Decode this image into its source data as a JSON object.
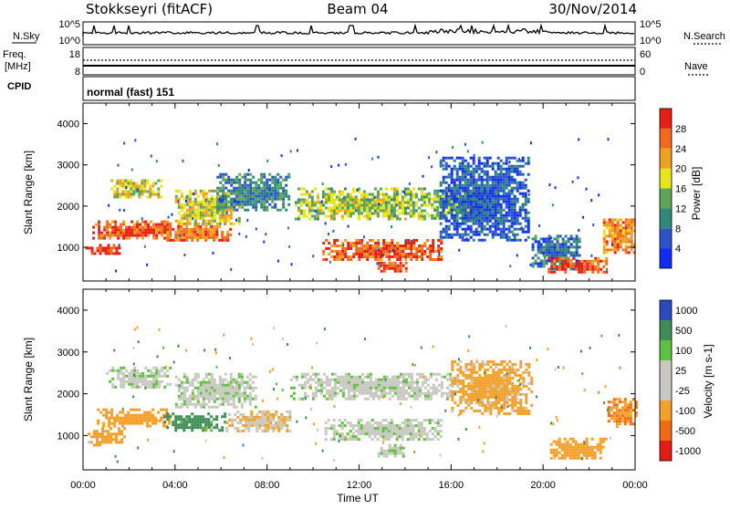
{
  "header": {
    "title": "Stokkseyri (fitACF)",
    "beam": "Beam 04",
    "date": "30/Nov/2014"
  },
  "strips": {
    "nsky": {
      "label": "N.Sky",
      "ticks_left": [
        "10^5",
        "10^0"
      ],
      "ticks_right": [
        "10^5",
        "10^0"
      ],
      "right_label": "N.Search"
    },
    "freq": {
      "label_line1": "Freq.",
      "label_line2": "[MHz]",
      "ticks_left": [
        "18",
        "8"
      ],
      "ticks_right": [
        "60",
        "0"
      ],
      "right_label": "Nave"
    },
    "cpid": {
      "label": "CPID",
      "value": "normal (fast) 151"
    }
  },
  "colors": {
    "power": [
      "#0f2df0",
      "#2b54c8",
      "#2e8a78",
      "#5ca65a",
      "#e6e619",
      "#f0a020",
      "#f06a1e",
      "#e81e14"
    ],
    "velocity": [
      "#e51c14",
      "#f06a14",
      "#f4a028",
      "#c8c8c0",
      "#c8c8c0",
      "#5cc13c",
      "#3d8d54",
      "#2b4ac2"
    ]
  },
  "chart_data": [
    {
      "type": "heatmap",
      "panel": "power",
      "xlabel": "",
      "ylabel": "Slant Range [km]",
      "yticks": [
        1000,
        2000,
        3000,
        4000
      ],
      "ylim": [
        180,
        4500
      ],
      "xlim": [
        0,
        24
      ],
      "colorbar": {
        "label": "Power [dB]",
        "ticks": [
          "4",
          "8",
          "12",
          "16",
          "20",
          "24",
          "28"
        ],
        "range": [
          0,
          32
        ]
      },
      "regions": [
        {
          "t": [
            0.1,
            1.6
          ],
          "r": [
            820,
            1080
          ],
          "v": 29
        },
        {
          "t": [
            0.4,
            3.8
          ],
          "r": [
            1200,
            1650
          ],
          "v": 27
        },
        {
          "t": [
            1.2,
            3.4
          ],
          "r": [
            2200,
            2650
          ],
          "v": 18
        },
        {
          "t": [
            3.5,
            6.4
          ],
          "r": [
            1150,
            1600
          ],
          "v": 25
        },
        {
          "t": [
            4.0,
            6.8
          ],
          "r": [
            1550,
            2400
          ],
          "v": 19
        },
        {
          "t": [
            5.8,
            9.0
          ],
          "r": [
            1900,
            2800
          ],
          "v": 10
        },
        {
          "t": [
            9.2,
            15.0
          ],
          "r": [
            1700,
            2450
          ],
          "v": 16
        },
        {
          "t": [
            10.4,
            15.6
          ],
          "r": [
            700,
            1200
          ],
          "v": 27
        },
        {
          "t": [
            12.8,
            14.0
          ],
          "r": [
            420,
            650
          ],
          "v": 28
        },
        {
          "t": [
            15.0,
            17.5
          ],
          "r": [
            1700,
            2400
          ],
          "v": 14
        },
        {
          "t": [
            15.5,
            19.4
          ],
          "r": [
            1200,
            3200
          ],
          "v": 6
        },
        {
          "t": [
            19.5,
            21.6
          ],
          "r": [
            500,
            1300
          ],
          "v": 8
        },
        {
          "t": [
            20.2,
            22.8
          ],
          "r": [
            420,
            760
          ],
          "v": 27
        },
        {
          "t": [
            22.6,
            24.0
          ],
          "r": [
            900,
            1700
          ],
          "v": 24
        }
      ]
    },
    {
      "type": "heatmap",
      "panel": "velocity",
      "xlabel": "Time UT",
      "ylabel": "Slant Range [km]",
      "xticks": [
        "00:00",
        "04:00",
        "08:00",
        "12:00",
        "16:00",
        "20:00",
        "00:00"
      ],
      "yticks": [
        1000,
        2000,
        3000,
        4000
      ],
      "ylim": [
        180,
        4500
      ],
      "xlim": [
        0,
        24
      ],
      "colorbar": {
        "label": "Velocity [m s-1]",
        "ticks": [
          "1000",
          "500",
          "100",
          "25",
          "-25",
          "-100",
          "-500",
          "-1000"
        ],
        "levels": [
          -1000,
          -500,
          -100,
          -25,
          25,
          100,
          500,
          1000
        ]
      },
      "regions": [
        {
          "t": [
            0.2,
            1.8
          ],
          "r": [
            800,
            1200
          ],
          "v": -180
        },
        {
          "t": [
            0.6,
            3.8
          ],
          "r": [
            1250,
            1650
          ],
          "v": -220
        },
        {
          "t": [
            1.0,
            3.8
          ],
          "r": [
            2150,
            2650
          ],
          "v": 0
        },
        {
          "t": [
            3.5,
            6.2
          ],
          "r": [
            1150,
            1550
          ],
          "v": 160
        },
        {
          "t": [
            4.0,
            7.5
          ],
          "r": [
            1700,
            2500
          ],
          "v": 0
        },
        {
          "t": [
            6.2,
            9.0
          ],
          "r": [
            1100,
            1600
          ],
          "v": -90
        },
        {
          "t": [
            9.0,
            16.0
          ],
          "r": [
            1900,
            2500
          ],
          "v": 0
        },
        {
          "t": [
            10.5,
            15.5
          ],
          "r": [
            900,
            1400
          ],
          "v": 0
        },
        {
          "t": [
            12.8,
            14.0
          ],
          "r": [
            500,
            800
          ],
          "v": 0
        },
        {
          "t": [
            16.0,
            19.5
          ],
          "r": [
            1500,
            2800
          ],
          "v": -150
        },
        {
          "t": [
            20.3,
            22.7
          ],
          "r": [
            450,
            950
          ],
          "v": -250
        },
        {
          "t": [
            22.8,
            24.0
          ],
          "r": [
            1200,
            1900
          ],
          "v": -500
        }
      ]
    }
  ]
}
